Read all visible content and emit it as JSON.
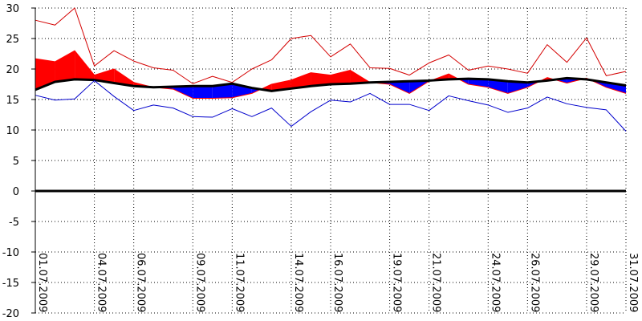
{
  "chart_data": {
    "type": "line",
    "title": "",
    "xlabel": "",
    "ylabel": "",
    "ylim": [
      -20,
      30
    ],
    "yticks": [
      30,
      25,
      20,
      15,
      10,
      5,
      0,
      -5,
      -10,
      -15,
      -20
    ],
    "grid": true,
    "legend": "none",
    "x_tick_labels": [
      "01.07.2009",
      "04.07.2009",
      "06.07.2009",
      "09.07.2009",
      "11.07.2009",
      "14.07.2009",
      "16.07.2009",
      "19.07.2009",
      "21.07.2009",
      "24.07.2009",
      "26.07.2009",
      "29.07.2009",
      "31.07.2009"
    ],
    "x_tick_days": [
      1,
      4,
      6,
      9,
      11,
      14,
      16,
      19,
      21,
      24,
      26,
      29,
      31
    ],
    "x_range": [
      1,
      31
    ],
    "days": [
      1,
      2,
      3,
      4,
      5,
      6,
      7,
      8,
      9,
      10,
      11,
      12,
      13,
      14,
      15,
      16,
      17,
      18,
      19,
      20,
      21,
      22,
      23,
      24,
      25,
      26,
      27,
      28,
      29,
      30,
      31
    ],
    "series": [
      {
        "role": "max",
        "color": "#d40000",
        "values": [
          28,
          27.2,
          30,
          20.5,
          23,
          21.3,
          20.2,
          19.8,
          17.6,
          18.8,
          17.8,
          20,
          21.5,
          25,
          25.5,
          22,
          24.1,
          20.2,
          20.1,
          19,
          21,
          22.3,
          19.8,
          20.5,
          20,
          19.3,
          24,
          21.1,
          25.1,
          18.9,
          19.6
        ]
      },
      {
        "role": "mean",
        "color": "#ff0000",
        "values": [
          21.7,
          21.2,
          23,
          19,
          20,
          17.8,
          17,
          16.7,
          15.2,
          15.2,
          15.3,
          16,
          17.5,
          18.2,
          19.4,
          19,
          19.8,
          17.8,
          17.5,
          16,
          18,
          19.2,
          17.5,
          17,
          16,
          17,
          18.6,
          17.7,
          18.5,
          17,
          16
        ]
      },
      {
        "role": "normal",
        "color": "#000000",
        "values": [
          16.6,
          17.9,
          18.3,
          18.2,
          17.7,
          17.2,
          17,
          17.1,
          17.2,
          17.2,
          17.6,
          16.9,
          16.4,
          16.8,
          17.2,
          17.5,
          17.6,
          17.8,
          17.9,
          18,
          18.1,
          18.3,
          18.4,
          18.3,
          18,
          17.8,
          18.1,
          18.5,
          18.3,
          17.8,
          17.3
        ]
      },
      {
        "role": "min",
        "color": "#0000cc",
        "values": [
          15.7,
          14.9,
          15.1,
          18.1,
          15.5,
          13.2,
          14.1,
          13.6,
          12.2,
          12.1,
          13.5,
          12.2,
          13.6,
          10.6,
          13,
          14.9,
          14.6,
          16,
          14.2,
          14.2,
          13.2,
          15.6,
          14.8,
          14.1,
          12.9,
          13.6,
          15.4,
          14.3,
          13.7,
          13.3,
          9.8
        ]
      }
    ],
    "fill_above_color": "#ff0000",
    "fill_below_color": "#0000ff"
  }
}
